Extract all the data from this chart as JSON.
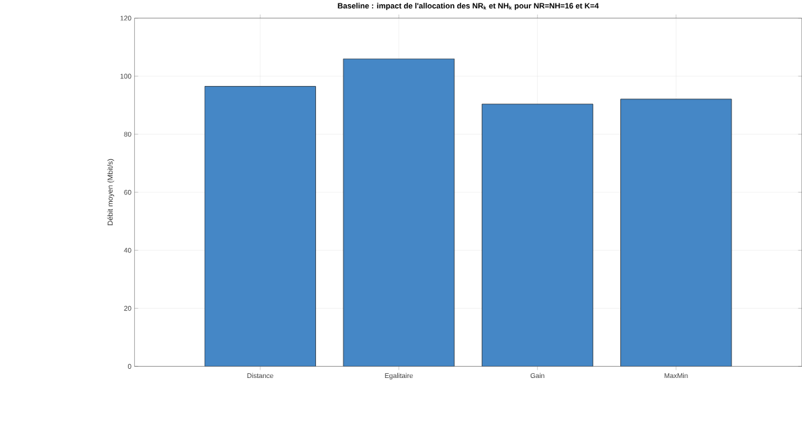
{
  "chart_data": {
    "type": "bar",
    "title": "Baseline : impact de l'allocation des NR$_{k}$ et NH$_{k}$ pour NR=NH=16 et K=4",
    "ylabel": "Débit moyen (Mbit/s)",
    "categories": [
      "Distance",
      "Egalitaire",
      "Gain",
      "MaxMin"
    ],
    "values": [
      96.5,
      106.0,
      90.4,
      92.1
    ],
    "color": "#4587c6",
    "ylim": [
      0,
      120
    ],
    "yticks": [
      0,
      20,
      40,
      60,
      80,
      100,
      120
    ],
    "grid": true
  }
}
